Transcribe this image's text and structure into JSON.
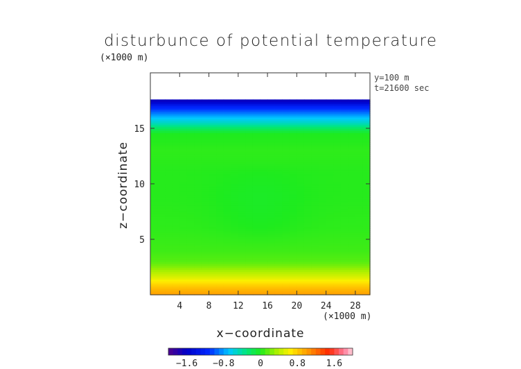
{
  "chart_data": {
    "type": "heatmap",
    "title": "disturbunce of potential temperature",
    "xlabel": "x−coordinate",
    "ylabel": "z−coordinate",
    "x_unit": "(×1000 m)",
    "y_unit": "(×1000 m)",
    "xlim": [
      0,
      30
    ],
    "ylim": [
      0,
      20
    ],
    "x_ticks": [
      4,
      8,
      12,
      16,
      20,
      24,
      28
    ],
    "y_ticks": [
      5,
      10,
      15
    ],
    "x_tick_labels": [
      "4",
      "8",
      "12",
      "16",
      "20",
      "24",
      "28"
    ],
    "y_tick_labels": [
      "5",
      "10",
      "15"
    ],
    "annotations": [
      "y=100 m",
      "t=21600 sec"
    ],
    "colorbar": {
      "range": [
        -2,
        2
      ],
      "ticks": [
        -1.6,
        -0.8,
        0,
        0.8,
        1.6
      ],
      "tick_labels": [
        "−1.6",
        "−0.8",
        "0",
        "0.8",
        "1.6"
      ]
    },
    "z_top_of_data": 17.6,
    "vertical_profile": {
      "z": [
        0.0,
        0.5,
        1.0,
        1.5,
        2.0,
        2.5,
        3.0,
        4.0,
        6.0,
        9.0,
        11.0,
        13.0,
        14.5,
        15.0,
        15.5,
        16.0,
        16.5,
        17.0,
        17.3,
        17.6
      ],
      "value": [
        1.0,
        0.9,
        0.75,
        0.55,
        0.4,
        0.25,
        0.14,
        0.08,
        0.04,
        0.02,
        0.02,
        0.04,
        0.0,
        -0.2,
        -0.5,
        -0.7,
        -0.95,
        -1.2,
        -1.5,
        -1.7
      ]
    },
    "center_dip": {
      "x_center": 15,
      "width": 12,
      "z_range": [
        4,
        12
      ],
      "amount": 0.05
    }
  }
}
